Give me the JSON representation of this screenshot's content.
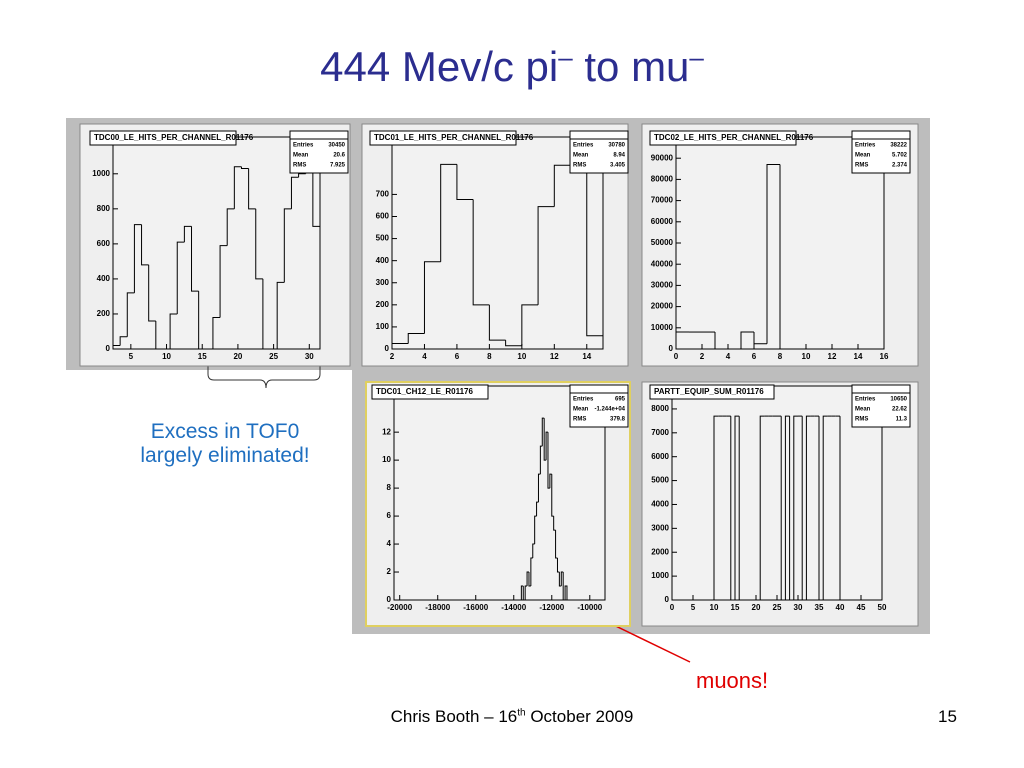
{
  "title": {
    "part1": "444 Mev/c pi",
    "sup1": "–",
    "part2": " to mu",
    "sup2": "–"
  },
  "annotation_left": {
    "line1": "Excess in TOF0",
    "line2": "largely eliminated!"
  },
  "annotation_muons": "muons!",
  "footer": {
    "prefix": "Chris Booth – 16",
    "sup": "th",
    "suffix": " October  2009"
  },
  "page_number": "15",
  "chart_data": [
    {
      "type": "histogram",
      "title": "TDC00_LE_HITS_PER_CHANNEL_R01176",
      "color": "#000000",
      "stats": [
        {
          "name": "Entries",
          "value": 30450
        },
        {
          "name": "Mean",
          "value": 20.6
        },
        {
          "name": "RMS",
          "value": 7.925
        }
      ],
      "bins": [
        2.5,
        3.5,
        4.5,
        5.5,
        6.5,
        7.5,
        8.5,
        9.5,
        10.5,
        11.5,
        12.5,
        13.5,
        14.5,
        15.5,
        16.5,
        17.5,
        18.5,
        19.5,
        20.5,
        21.5,
        22.5,
        23.5,
        24.5,
        25.5,
        26.5,
        27.5,
        28.5,
        29.5,
        30.5,
        31.5
      ],
      "values": [
        20,
        70,
        320,
        710,
        480,
        160,
        0,
        0,
        200,
        610,
        700,
        330,
        0,
        0,
        180,
        590,
        800,
        1040,
        1030,
        800,
        400,
        0,
        0,
        380,
        800,
        980,
        1000,
        1150,
        700
      ],
      "xlim": [
        2.5,
        31.5
      ],
      "ylim": [
        0,
        1210
      ],
      "xticks": [
        5,
        10,
        15,
        20,
        25,
        30
      ],
      "yticks": [
        0,
        200,
        400,
        600,
        800,
        1000
      ]
    },
    {
      "type": "histogram",
      "title": "TDC01_LE_HITS_PER_CHANNEL_R01176",
      "color": "#000000",
      "stats": [
        {
          "name": "Entries",
          "value": 30780
        },
        {
          "name": "Mean",
          "value": 8.94
        },
        {
          "name": "RMS",
          "value": 3.405
        }
      ],
      "bins": [
        2,
        3,
        4,
        5,
        6,
        7,
        8,
        9,
        10,
        11,
        12,
        13,
        14,
        15
      ],
      "values": [
        25,
        70,
        395,
        836,
        677,
        200,
        40,
        15,
        200,
        645,
        832,
        832,
        60
      ],
      "xlim": [
        2,
        15
      ],
      "ylim": [
        0,
        960
      ],
      "xticks": [
        2,
        4,
        6,
        8,
        10,
        12,
        14
      ],
      "yticks": [
        0,
        100,
        200,
        300,
        400,
        500,
        600,
        700
      ]
    },
    {
      "type": "histogram",
      "title": "TDC02_LE_HITS_PER_CHANNEL_R01176",
      "color": "#000000",
      "stats": [
        {
          "name": "Entries",
          "value": 38222
        },
        {
          "name": "Mean",
          "value": 5.702
        },
        {
          "name": "RMS",
          "value": 2.374
        }
      ],
      "bins": [
        0,
        1,
        2,
        3,
        4,
        5,
        6,
        7,
        8,
        9,
        10,
        11,
        12,
        13,
        14,
        15,
        16
      ],
      "values": [
        8000,
        8000,
        8000,
        0,
        0,
        8000,
        2500,
        87000,
        0,
        0,
        0,
        0,
        0,
        0,
        0,
        0
      ],
      "xlim": [
        0,
        16
      ],
      "ylim": [
        0,
        100000
      ],
      "xticks": [
        0,
        2,
        4,
        6,
        8,
        10,
        12,
        14,
        16
      ],
      "yticks": [
        0,
        10000,
        20000,
        30000,
        40000,
        50000,
        60000,
        70000,
        80000,
        90000
      ]
    },
    {
      "type": "histogram",
      "title": "TDC01_CH12_LE_R01176",
      "color": "#000000",
      "stats": [
        {
          "name": "Entries",
          "value": 695
        },
        {
          "name": "Mean",
          "value": {
            "value": -12440,
            "label": "-1.244e+04"
          }
        },
        {
          "name": "RMS",
          "value": 379.8
        }
      ],
      "bins": [
        -13600,
        -13500,
        -13400,
        -13300,
        -13200,
        -13100,
        -13000,
        -12900,
        -12800,
        -12700,
        -12600,
        -12500,
        -12400,
        -12300,
        -12200,
        -12100,
        -12000,
        -11900,
        -11800,
        -11700,
        -11600,
        -11500,
        -11400,
        -11300,
        -11200
      ],
      "values": [
        1,
        0,
        1,
        2,
        1,
        3,
        4,
        6,
        7,
        9,
        11,
        13,
        10,
        12,
        8,
        9,
        6,
        5,
        3,
        2,
        1,
        2,
        0,
        1
      ],
      "xlim": [
        -20300,
        -9200
      ],
      "ylim": [
        0,
        15.3
      ],
      "xticks": [
        -20000,
        -18000,
        -16000,
        -14000,
        -12000,
        -10000
      ],
      "yticks": [
        0,
        2,
        4,
        6,
        8,
        10,
        12
      ]
    },
    {
      "type": "histogram",
      "title": "PARTT_EQUIP_SUM_R01176",
      "color": "#000000",
      "stats": [
        {
          "name": "Entries",
          "value": 10650
        },
        {
          "name": "Mean",
          "value": 22.62
        },
        {
          "name": "RMS",
          "value": 11.3
        }
      ],
      "bins": [
        0,
        1,
        2,
        3,
        4,
        5,
        6,
        7,
        8,
        9,
        10,
        11,
        12,
        13,
        14,
        15,
        16,
        17,
        18,
        19,
        20,
        21,
        22,
        23,
        24,
        25,
        26,
        27,
        28,
        29,
        30,
        31,
        32,
        33,
        34,
        35,
        36,
        37,
        38,
        39,
        40,
        41,
        42,
        43,
        44,
        45,
        46,
        47,
        48,
        49,
        50
      ],
      "values": [
        0,
        0,
        0,
        0,
        0,
        0,
        0,
        0,
        0,
        0,
        7700,
        7700,
        7700,
        7700,
        0,
        7700,
        0,
        0,
        0,
        0,
        0,
        7700,
        7700,
        7700,
        7700,
        7700,
        0,
        7700,
        0,
        7700,
        7700,
        0,
        7700,
        7700,
        7700,
        0,
        7700,
        7700,
        7700,
        7700,
        0,
        0,
        0,
        0,
        0,
        0,
        0,
        0,
        0,
        0
      ],
      "xlim": [
        0,
        50
      ],
      "ylim": [
        0,
        8960
      ],
      "xticks": [
        0,
        5,
        10,
        15,
        20,
        25,
        30,
        35,
        40,
        45,
        50
      ],
      "yticks": [
        0,
        1000,
        2000,
        3000,
        4000,
        5000,
        6000,
        7000,
        8000
      ]
    }
  ]
}
